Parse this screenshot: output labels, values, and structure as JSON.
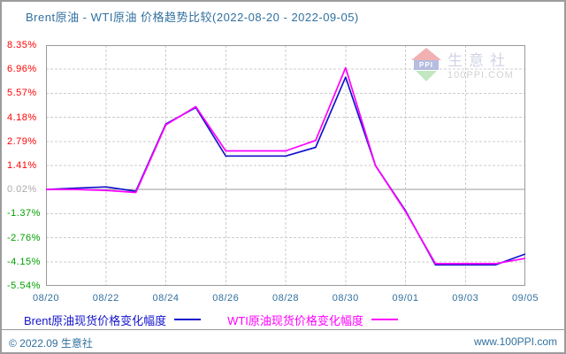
{
  "title": "Brent原油 - WTI原油 价格趋势比较(2022-08-20 - 2022-09-05)",
  "watermark": {
    "logo_text": "PPI",
    "brand": "生意社",
    "domain": "100PPI.COM"
  },
  "legend": {
    "brent_label": "Brent原油现货价格变化幅度",
    "wti_label": "WTI原油现货价格变化幅度"
  },
  "footer": {
    "copyright": "© 2022.09 生意社",
    "website": "www.100PPI.com"
  },
  "colors": {
    "title_text": "#31709F",
    "axis_date_text": "#31709F",
    "footer_text": "#31709F",
    "brent_line": "#1414CC",
    "wti_line": "#FF00FF",
    "positive_tick": "#FF0000",
    "zero_tick": "#AAAAAA",
    "negative_tick": "#00A000",
    "gridline": "#CCCCCC",
    "plot_border": "#999999",
    "zero_line": "#999999"
  },
  "chart_data": {
    "type": "line",
    "title": "Brent原油 - WTI原油 价格趋势比较(2022-08-20 - 2022-09-05)",
    "x": [
      "08/20",
      "08/21",
      "08/22",
      "08/23",
      "08/24",
      "08/25",
      "08/26",
      "08/27",
      "08/28",
      "08/29",
      "08/30",
      "08/31",
      "09/01",
      "09/02",
      "09/03",
      "09/04",
      "09/05"
    ],
    "series": [
      {
        "name": "Brent原油现货价格变化幅度",
        "color": "#1414CC",
        "values": [
          0.02,
          0.1,
          0.17,
          -0.08,
          3.8,
          4.75,
          1.95,
          1.95,
          1.95,
          2.45,
          6.5,
          1.4,
          -1.2,
          -4.33,
          -4.33,
          -4.33,
          -3.7
        ]
      },
      {
        "name": "WTI原油现货价格变化幅度",
        "color": "#FF00FF",
        "values": [
          0.02,
          0.02,
          -0.03,
          -0.15,
          3.75,
          4.8,
          2.25,
          2.25,
          2.25,
          2.85,
          7.05,
          1.4,
          -1.25,
          -4.26,
          -4.26,
          -4.26,
          -3.95
        ]
      }
    ],
    "ylabel": "涨跌幅(%)",
    "ylim": [
      -5.54,
      8.35
    ],
    "zero_line_value": 0.02,
    "grid": "dashed",
    "legend_position": "bottom",
    "y_ticks": [
      {
        "label": "8.35%",
        "value": 8.35,
        "color": "#FF0000"
      },
      {
        "label": "6.96%",
        "value": 6.96,
        "color": "#FF0000"
      },
      {
        "label": "5.57%",
        "value": 5.57,
        "color": "#FF0000"
      },
      {
        "label": "4.18%",
        "value": 4.18,
        "color": "#FF0000"
      },
      {
        "label": "2.79%",
        "value": 2.79,
        "color": "#FF0000"
      },
      {
        "label": "1.41%",
        "value": 1.41,
        "color": "#FF0000"
      },
      {
        "label": "0.02%",
        "value": 0.02,
        "color": "#AAAAAA"
      },
      {
        "label": "-1.37%",
        "value": -1.37,
        "color": "#00A000"
      },
      {
        "label": "-2.76%",
        "value": -2.76,
        "color": "#00A000"
      },
      {
        "label": "-4.15%",
        "value": -4.15,
        "color": "#00A000"
      },
      {
        "label": "-5.54%",
        "value": -5.54,
        "color": "#00A000"
      }
    ],
    "x_ticks": [
      {
        "label": "08/20",
        "day": 0
      },
      {
        "label": "08/22",
        "day": 2
      },
      {
        "label": "08/24",
        "day": 4
      },
      {
        "label": "08/26",
        "day": 6
      },
      {
        "label": "08/28",
        "day": 8
      },
      {
        "label": "08/30",
        "day": 10
      },
      {
        "label": "09/01",
        "day": 12
      },
      {
        "label": "09/03",
        "day": 14
      },
      {
        "label": "09/05",
        "day": 16
      }
    ]
  }
}
